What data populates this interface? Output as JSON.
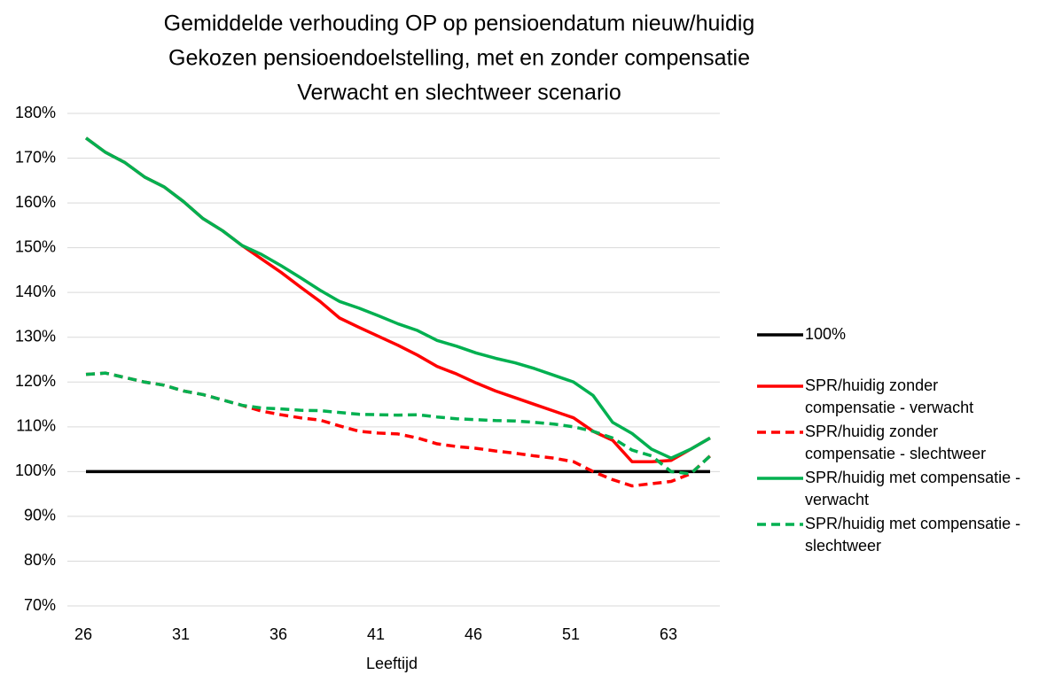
{
  "chart_data": {
    "type": "line",
    "title": "Gemiddelde verhouding OP op pensioendatum nieuw/huidig",
    "subtitle": [
      "Gekozen pensioendoelstelling, met en zonder compensatie",
      "Verwacht en slechtweer scenario"
    ],
    "x_label": "Leeftijd",
    "categories": [
      "26",
      null,
      null,
      null,
      null,
      "31",
      null,
      null,
      null,
      null,
      "36",
      null,
      null,
      null,
      null,
      "41",
      null,
      null,
      null,
      null,
      "46",
      null,
      null,
      null,
      null,
      "51",
      null,
      null,
      null,
      null,
      "63",
      null,
      null
    ],
    "ylim": [
      70,
      180
    ],
    "yticks": [
      {
        "value": 70,
        "label": "70%"
      },
      {
        "value": 80,
        "label": "80%"
      },
      {
        "value": 90,
        "label": "90%"
      },
      {
        "value": 100,
        "label": "100%"
      },
      {
        "value": 110,
        "label": "110%"
      },
      {
        "value": 120,
        "label": "120%"
      },
      {
        "value": 130,
        "label": "130%"
      },
      {
        "value": 140,
        "label": "140%"
      },
      {
        "value": 150,
        "label": "150%"
      },
      {
        "value": 160,
        "label": "160%"
      },
      {
        "value": 170,
        "label": "170%"
      },
      {
        "value": 180,
        "label": "180%"
      }
    ],
    "grid": true,
    "legend": "right",
    "series": [
      {
        "name": "100%",
        "color": "#000000",
        "dashed": false,
        "values": [
          100,
          100,
          100,
          100,
          100,
          100,
          100,
          100,
          100,
          100,
          100,
          100,
          100,
          100,
          100,
          100,
          100,
          100,
          100,
          100,
          100,
          100,
          100,
          100,
          100,
          100,
          100,
          100,
          100,
          100,
          100,
          100,
          100
        ]
      },
      {
        "name": "SPR/huidig zonder compensatie - verwacht",
        "color": "#ff0000",
        "dashed": false,
        "values": [
          174.5,
          171.3,
          169,
          165.8,
          163.6,
          160.3,
          156.5,
          153.8,
          150.5,
          147.5,
          144.5,
          141.2,
          138,
          134.3,
          132.2,
          130.2,
          128.2,
          126,
          123.5,
          121.8,
          119.8,
          118,
          116.5,
          115,
          113.5,
          112,
          109,
          107,
          102.2,
          102.2,
          102.5,
          105,
          107.5
        ]
      },
      {
        "name": "SPR/huidig zonder compensatie - slechtweer",
        "color": "#ff0000",
        "dashed": true,
        "values": [
          121.7,
          122,
          121,
          120,
          119.3,
          118,
          117.2,
          116,
          114.8,
          113.5,
          112.7,
          112,
          111.5,
          110.2,
          109,
          108.6,
          108.4,
          107.5,
          106.2,
          105.6,
          105.2,
          104.6,
          104.1,
          103.5,
          103,
          102.2,
          100,
          98.2,
          96.8,
          97.3,
          97.8,
          99.5,
          103.5
        ]
      },
      {
        "name": "SPR/huidig met compensatie - verwacht",
        "color": "#00b050",
        "dashed": false,
        "values": [
          174.5,
          171.3,
          169,
          165.8,
          163.6,
          160.3,
          156.5,
          153.8,
          150.5,
          148.5,
          146,
          143.3,
          140.5,
          138,
          136.5,
          134.8,
          133,
          131.5,
          129.3,
          128,
          126.5,
          125.3,
          124.3,
          123,
          121.5,
          120,
          117,
          111,
          108.5,
          105,
          103,
          105,
          107.5
        ]
      },
      {
        "name": "SPR/huidig met compensatie - slechtweer",
        "color": "#00b050",
        "dashed": true,
        "values": [
          121.7,
          122,
          121,
          120,
          119.3,
          118,
          117.2,
          116,
          114.8,
          114.2,
          114,
          113.7,
          113.6,
          113.2,
          112.8,
          112.7,
          112.6,
          112.7,
          112.2,
          111.8,
          111.6,
          111.4,
          111.3,
          111,
          110.6,
          110,
          109,
          107.5,
          104.8,
          103.5,
          100,
          99.5,
          103.5
        ]
      }
    ]
  }
}
